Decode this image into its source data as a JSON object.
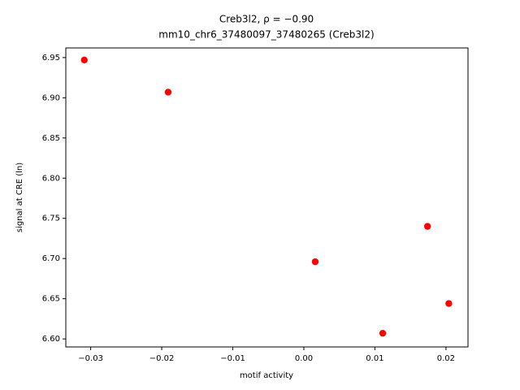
{
  "chart_data": {
    "type": "scatter",
    "title": "Creb3l2, ρ = −0.90",
    "subtitle": "mm10_chr6_37480097_37480265 (Creb3l2)",
    "x_label": "motif activity",
    "y_label": "signal at CRE (ln)",
    "x": [
      -0.0309,
      -0.0191,
      0.0016,
      0.0174,
      0.0111,
      0.0204
    ],
    "values": [
      6.947,
      6.907,
      6.696,
      6.74,
      6.607,
      6.644
    ],
    "color": "#ff0000",
    "xlim": [
      -0.0335,
      0.0231
    ],
    "ylim": [
      6.59,
      6.962
    ],
    "xticks": [
      {
        "value": -0.03,
        "label": "−0.03"
      },
      {
        "value": -0.02,
        "label": "−0.02"
      },
      {
        "value": -0.01,
        "label": "−0.01"
      },
      {
        "value": 0,
        "label": "0.00"
      },
      {
        "value": 0.01,
        "label": "0.01"
      },
      {
        "value": 0.02,
        "label": "0.02"
      }
    ],
    "yticks": [
      {
        "value": 6.6,
        "label": "6.60"
      },
      6.65,
      {
        "value": 6.7,
        "label": "6.70"
      },
      6.75,
      {
        "value": 6.8,
        "label": "6.80"
      },
      6.85,
      {
        "value": 6.9,
        "label": "6.90"
      },
      6.95
    ],
    "grid": false
  }
}
